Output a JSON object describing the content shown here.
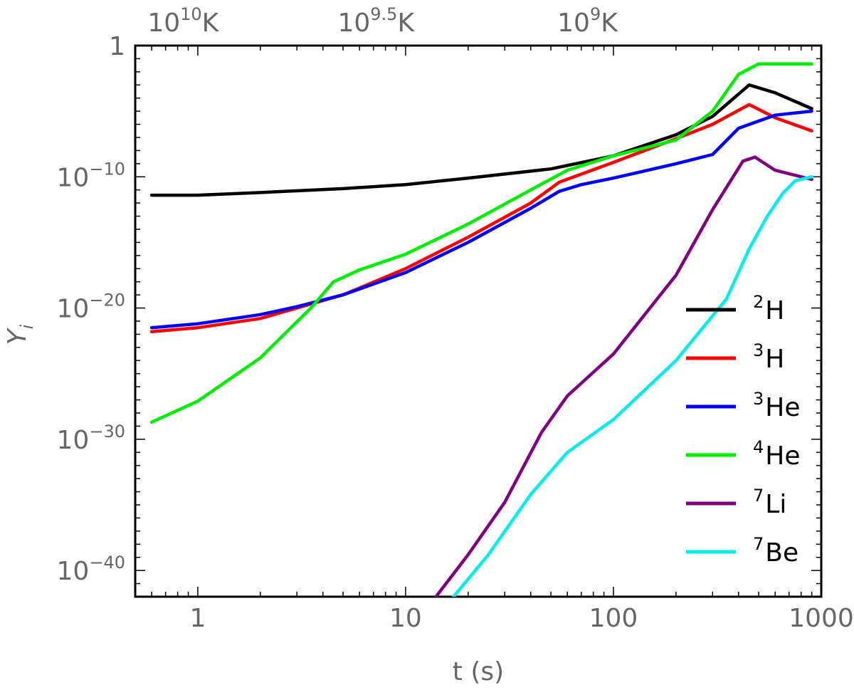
{
  "chart_data": {
    "type": "line",
    "x_scale": "log",
    "y_scale": "log",
    "xlim": [
      0.5,
      1000
    ],
    "ylim_log10": [
      -42,
      0
    ],
    "xlabel": "t (s)",
    "ylabel": "Y",
    "ylabel_subscript": "i",
    "x_ticks": [
      {
        "value": 1,
        "label": "1"
      },
      {
        "value": 10,
        "label": "10"
      },
      {
        "value": 100,
        "label": "100"
      },
      {
        "value": 1000,
        "label": "1000"
      }
    ],
    "y_ticks": [
      {
        "log10": 0,
        "base": "1",
        "exp": ""
      },
      {
        "log10": -10,
        "base": "10",
        "exp": "−10"
      },
      {
        "log10": -20,
        "base": "10",
        "exp": "−20"
      },
      {
        "log10": -30,
        "base": "10",
        "exp": "−30"
      },
      {
        "log10": -40,
        "base": "10",
        "exp": "−40"
      }
    ],
    "top_axis": [
      {
        "t": 0.85,
        "base": "10",
        "exp": "10",
        "unit": "K"
      },
      {
        "t": 7.2,
        "base": "10",
        "exp": "9.5",
        "unit": "K"
      },
      {
        "t": 75,
        "base": "10",
        "exp": "9",
        "unit": "K"
      }
    ],
    "series": [
      {
        "name": "2H",
        "mass": "2",
        "symbol": "H",
        "color": "#000000",
        "points": [
          [
            0.6,
            -11.4
          ],
          [
            1,
            -11.4
          ],
          [
            2,
            -11.2
          ],
          [
            5,
            -10.9
          ],
          [
            10,
            -10.6
          ],
          [
            20,
            -10.1
          ],
          [
            50,
            -9.4
          ],
          [
            100,
            -8.4
          ],
          [
            200,
            -6.8
          ],
          [
            300,
            -5.4
          ],
          [
            450,
            -3.0
          ],
          [
            600,
            -3.6
          ],
          [
            900,
            -4.8
          ]
        ]
      },
      {
        "name": "3H",
        "mass": "3",
        "symbol": "H",
        "color": "#ff0000",
        "points": [
          [
            0.6,
            -21.8
          ],
          [
            1,
            -21.5
          ],
          [
            2,
            -20.8
          ],
          [
            3,
            -20.0
          ],
          [
            5,
            -19.0
          ],
          [
            10,
            -17.0
          ],
          [
            20,
            -14.6
          ],
          [
            40,
            -12.0
          ],
          [
            55,
            -10.4
          ],
          [
            70,
            -9.8
          ],
          [
            100,
            -8.9
          ],
          [
            200,
            -7.1
          ],
          [
            300,
            -6.0
          ],
          [
            450,
            -4.5
          ],
          [
            600,
            -5.5
          ],
          [
            900,
            -6.5
          ]
        ]
      },
      {
        "name": "3He",
        "mass": "3",
        "symbol": "He",
        "color": "#0000ff",
        "points": [
          [
            0.6,
            -21.5
          ],
          [
            1,
            -21.2
          ],
          [
            2,
            -20.5
          ],
          [
            3,
            -19.9
          ],
          [
            5,
            -19.0
          ],
          [
            10,
            -17.3
          ],
          [
            20,
            -15.0
          ],
          [
            40,
            -12.4
          ],
          [
            55,
            -11.1
          ],
          [
            70,
            -10.6
          ],
          [
            100,
            -10.1
          ],
          [
            200,
            -9.0
          ],
          [
            300,
            -8.3
          ],
          [
            400,
            -6.3
          ],
          [
            600,
            -5.3
          ],
          [
            900,
            -5.0
          ]
        ]
      },
      {
        "name": "4He",
        "mass": "4",
        "symbol": "He",
        "color": "#00ee00",
        "points": [
          [
            0.6,
            -28.7
          ],
          [
            1,
            -27.1
          ],
          [
            2,
            -23.8
          ],
          [
            3.5,
            -20.0
          ],
          [
            4.5,
            -18.0
          ],
          [
            6,
            -17.1
          ],
          [
            10,
            -15.9
          ],
          [
            20,
            -13.6
          ],
          [
            40,
            -11.0
          ],
          [
            60,
            -9.5
          ],
          [
            100,
            -8.4
          ],
          [
            200,
            -7.2
          ],
          [
            300,
            -5.0
          ],
          [
            400,
            -2.2
          ],
          [
            500,
            -1.4
          ],
          [
            900,
            -1.4
          ]
        ]
      },
      {
        "name": "7Li",
        "mass": "7",
        "symbol": "Li",
        "color": "#800080",
        "points": [
          [
            14,
            -42
          ],
          [
            20,
            -38.8
          ],
          [
            30,
            -34.8
          ],
          [
            45,
            -29.5
          ],
          [
            60,
            -26.7
          ],
          [
            100,
            -23.5
          ],
          [
            200,
            -17.5
          ],
          [
            300,
            -12.5
          ],
          [
            420,
            -8.8
          ],
          [
            480,
            -8.5
          ],
          [
            600,
            -9.5
          ],
          [
            900,
            -10.2
          ]
        ]
      },
      {
        "name": "7Be",
        "mass": "7",
        "symbol": "Be",
        "color": "#00eeee",
        "points": [
          [
            17,
            -42
          ],
          [
            25,
            -38.8
          ],
          [
            40,
            -34.2
          ],
          [
            60,
            -31.0
          ],
          [
            100,
            -28.5
          ],
          [
            200,
            -24.0
          ],
          [
            350,
            -19.3
          ],
          [
            450,
            -15.5
          ],
          [
            550,
            -13.0
          ],
          [
            650,
            -11.3
          ],
          [
            750,
            -10.3
          ],
          [
            900,
            -10.0
          ]
        ]
      }
    ],
    "legend_position": "bottom-right"
  }
}
